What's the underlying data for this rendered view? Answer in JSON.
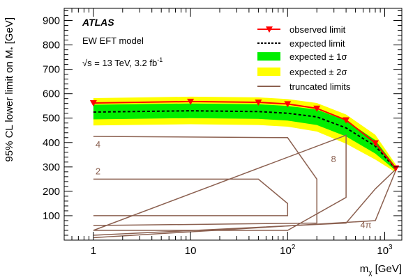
{
  "chart_data": {
    "type": "line",
    "x_scale": "log",
    "xlim": [
      0.5,
      1500
    ],
    "ylim": [
      0,
      950
    ],
    "x_ticks": [
      {
        "value": 1,
        "label": "1"
      },
      {
        "value": 10,
        "label": "10"
      },
      {
        "value": 100,
        "label": "10",
        "exp": "2"
      },
      {
        "value": 1000,
        "label": "10",
        "exp": "3"
      }
    ],
    "y_ticks": [
      100,
      200,
      300,
      400,
      500,
      600,
      700,
      800,
      900
    ],
    "xlabel": "m",
    "xlabel_sub": "χ",
    "xlabel_unit": " [GeV]",
    "ylabel": "95% CL lower limit on M",
    "ylabel_sub": "*",
    "ylabel_unit": " [GeV]",
    "annotations": {
      "experiment": "ATLAS",
      "model": "EW EFT model",
      "energy": "√s = 13 TeV, 3.2 fb",
      "energy_exp": "-1"
    },
    "legend": {
      "position": "top-right",
      "entries": {
        "observed": "observed limit",
        "expected": "expected limit",
        "band1": "expected ± 1σ",
        "band2": "expected ± 2σ",
        "truncated": "truncated limits"
      }
    },
    "colors": {
      "observed": "#ff0000",
      "expected": "#000000",
      "band1": "#00ee00",
      "band2": "#ffff00",
      "truncated": "#8b6050"
    },
    "x": [
      1,
      10,
      50,
      100,
      200,
      400,
      800,
      1300
    ],
    "observed": [
      562,
      568,
      565,
      558,
      540,
      492,
      398,
      295
    ],
    "expected": [
      525,
      530,
      527,
      520,
      505,
      460,
      385,
      292
    ],
    "band1_upper": [
      555,
      560,
      557,
      550,
      535,
      490,
      410,
      300
    ],
    "band1_lower": [
      495,
      500,
      497,
      490,
      472,
      425,
      355,
      285
    ],
    "band2_upper": [
      582,
      588,
      585,
      578,
      562,
      515,
      432,
      310
    ],
    "band2_lower": [
      470,
      475,
      472,
      465,
      445,
      395,
      330,
      278
    ],
    "truncated_series": [
      {
        "name": "2",
        "x": [
          1,
          50,
          100,
          100,
          1
        ],
        "y": [
          250,
          250,
          150,
          100,
          100
        ]
      },
      {
        "name": "4",
        "x": [
          1,
          100,
          200,
          200,
          1
        ],
        "y": [
          425,
          420,
          250,
          70,
          60
        ]
      },
      {
        "name": "8",
        "x": [
          1,
          100,
          400,
          400,
          1
        ],
        "y": [
          40,
          40,
          175,
          430,
          40
        ]
      },
      {
        "name": "4π",
        "x": [
          1,
          400,
          800,
          1300
        ],
        "y": [
          20,
          70,
          210,
          290
        ]
      },
      {
        "name": "",
        "x": [
          1,
          800,
          1300
        ],
        "y": [
          10,
          80,
          285
        ]
      }
    ],
    "truncated_labels": [
      {
        "text": "4",
        "x": 1.05,
        "y": 380
      },
      {
        "text": "2",
        "x": 1.05,
        "y": 270
      },
      {
        "text": "8",
        "x": 280,
        "y": 320
      },
      {
        "text": "4π",
        "x": 560,
        "y": 50
      }
    ]
  }
}
